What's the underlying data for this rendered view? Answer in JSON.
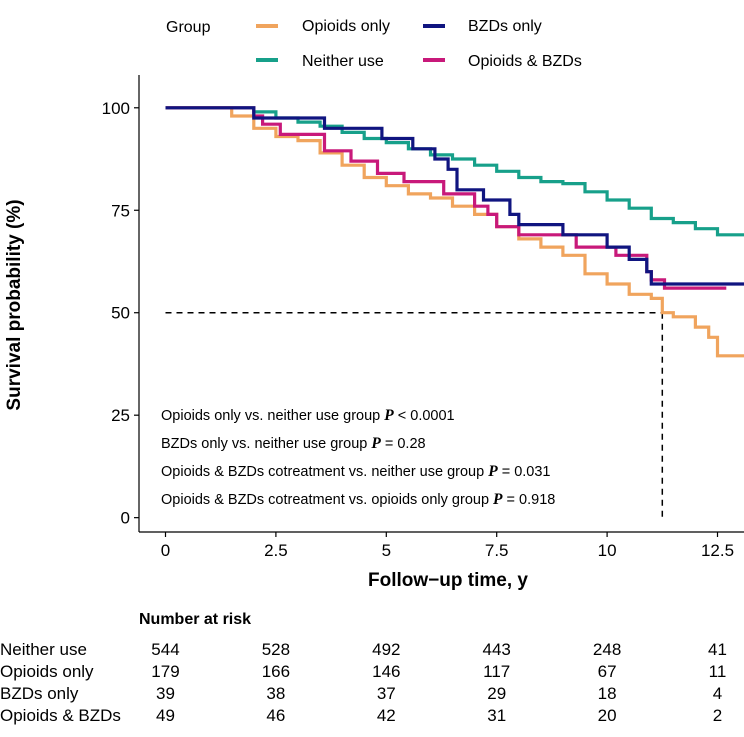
{
  "legend": {
    "title": "Group",
    "entries": [
      {
        "key": "opioids",
        "label": "Opioids only",
        "color": "#F0A45D"
      },
      {
        "key": "bzds",
        "label": "BZDs only",
        "color": "#101580"
      },
      {
        "key": "neither",
        "label": "Neither use",
        "color": "#17A08A"
      },
      {
        "key": "both",
        "label": "Opioids & BZDs",
        "color": "#C8197A"
      }
    ]
  },
  "annotations": [
    {
      "pre": "Opioids only vs. neither use group ",
      "p": "P",
      "post": " < 0.0001"
    },
    {
      "pre": "BZDs only vs. neither use group ",
      "p": "P",
      "post": " = 0.28"
    },
    {
      "pre": "Opioids & BZDs cotreatment vs. neither use group ",
      "p": "P",
      "post": " = 0.031"
    },
    {
      "pre": "Opioids & BZDs cotreatment vs. opioids only group ",
      "p": "P",
      "post": " = 0.918"
    }
  ],
  "risk_table": {
    "title": "Number at risk",
    "rows": [
      {
        "label": "Neither use",
        "values": [
          "544",
          "528",
          "492",
          "443",
          "248",
          "41"
        ]
      },
      {
        "label": "Opioids only",
        "values": [
          "179",
          "166",
          "146",
          "117",
          "67",
          "11"
        ]
      },
      {
        "label": "BZDs only",
        "values": [
          "39",
          "38",
          "37",
          "29",
          "18",
          "4"
        ]
      },
      {
        "label": "Opioids & BZDs",
        "values": [
          "49",
          "46",
          "42",
          "31",
          "20",
          "2"
        ]
      }
    ]
  },
  "chart_data": {
    "type": "line",
    "title": "",
    "xlabel": "Follow−up time, y",
    "ylabel": "Survival probability (%)",
    "xlim": [
      -0.6,
      13.1
    ],
    "ylim": [
      -3.5,
      108
    ],
    "xticks": [
      0,
      2.5,
      5,
      7.5,
      10,
      12.5
    ],
    "xtick_labels": [
      "0",
      "2.5",
      "5",
      "7.5",
      "10",
      "12.5"
    ],
    "yticks": [
      0,
      25,
      50,
      75,
      100
    ],
    "ytick_labels": [
      "0",
      "25",
      "50",
      "75",
      "100"
    ],
    "median_line": {
      "x": 11.25,
      "y": 50
    },
    "series": [
      {
        "key": "neither",
        "name": "Neither use",
        "color": "#17A08A",
        "points": [
          [
            0,
            100
          ],
          [
            1.8,
            100
          ],
          [
            2,
            99
          ],
          [
            2.5,
            97.5
          ],
          [
            3,
            96.5
          ],
          [
            3.5,
            95.5
          ],
          [
            4,
            94
          ],
          [
            4.5,
            92.5
          ],
          [
            5,
            91.5
          ],
          [
            5.5,
            90
          ],
          [
            6,
            88.5
          ],
          [
            6.5,
            87.5
          ],
          [
            7,
            86
          ],
          [
            7.5,
            84.5
          ],
          [
            8,
            83
          ],
          [
            8.5,
            82
          ],
          [
            9,
            81.5
          ],
          [
            9.5,
            79.5
          ],
          [
            10,
            77.5
          ],
          [
            10.5,
            75.5
          ],
          [
            11,
            73
          ],
          [
            11.5,
            72
          ],
          [
            12,
            70.5
          ],
          [
            12.5,
            69
          ],
          [
            13.1,
            69
          ]
        ]
      },
      {
        "key": "opioids",
        "name": "Opioids only",
        "color": "#F0A45D",
        "points": [
          [
            0,
            100
          ],
          [
            1,
            100
          ],
          [
            1.5,
            98
          ],
          [
            2,
            95
          ],
          [
            2.5,
            93
          ],
          [
            3,
            92
          ],
          [
            3.5,
            89
          ],
          [
            4,
            86
          ],
          [
            4.5,
            83
          ],
          [
            5,
            81
          ],
          [
            5.5,
            79
          ],
          [
            6,
            78
          ],
          [
            6.5,
            76
          ],
          [
            7,
            74
          ],
          [
            7.5,
            71
          ],
          [
            8,
            68
          ],
          [
            8.5,
            66
          ],
          [
            9,
            64
          ],
          [
            9.5,
            59.5
          ],
          [
            10,
            57
          ],
          [
            10.5,
            54.5
          ],
          [
            11,
            53.5
          ],
          [
            11.25,
            50
          ],
          [
            11.5,
            49
          ],
          [
            12,
            46.5
          ],
          [
            12.3,
            44
          ],
          [
            12.5,
            39.5
          ],
          [
            13.1,
            39.5
          ]
        ]
      },
      {
        "key": "bzds",
        "name": "BZDs only",
        "color": "#101580",
        "points": [
          [
            0,
            100
          ],
          [
            1.8,
            100
          ],
          [
            2,
            97.5
          ],
          [
            3.3,
            97.5
          ],
          [
            3.6,
            95
          ],
          [
            4.5,
            95
          ],
          [
            4.9,
            92.5
          ],
          [
            5.5,
            92.5
          ],
          [
            5.6,
            90
          ],
          [
            6,
            90
          ],
          [
            6.1,
            87.5
          ],
          [
            6.4,
            85
          ],
          [
            6.6,
            80
          ],
          [
            7,
            80
          ],
          [
            7.2,
            77.5
          ],
          [
            7.6,
            77.5
          ],
          [
            7.8,
            74
          ],
          [
            8,
            71.5
          ],
          [
            8.8,
            71.5
          ],
          [
            9,
            69
          ],
          [
            9.9,
            69
          ],
          [
            10,
            66
          ],
          [
            10.4,
            66
          ],
          [
            10.5,
            63
          ],
          [
            10.8,
            63
          ],
          [
            10.9,
            60
          ],
          [
            11,
            57
          ],
          [
            13.1,
            57
          ]
        ]
      },
      {
        "key": "both",
        "name": "Opioids & BZDs",
        "color": "#C8197A",
        "points": [
          [
            0,
            100
          ],
          [
            1.8,
            100
          ],
          [
            2,
            98
          ],
          [
            2.2,
            96
          ],
          [
            2.6,
            93.5
          ],
          [
            3.4,
            93.5
          ],
          [
            3.6,
            89.5
          ],
          [
            4,
            89.5
          ],
          [
            4.2,
            87
          ],
          [
            4.6,
            87
          ],
          [
            4.8,
            84
          ],
          [
            5.2,
            84
          ],
          [
            5.4,
            82
          ],
          [
            6,
            82
          ],
          [
            6.3,
            79
          ],
          [
            7,
            76
          ],
          [
            7.3,
            74
          ],
          [
            7.5,
            71
          ],
          [
            8,
            69
          ],
          [
            9.1,
            69
          ],
          [
            9.3,
            66
          ],
          [
            10,
            66
          ],
          [
            10.2,
            64
          ],
          [
            10.8,
            64
          ],
          [
            10.9,
            60
          ],
          [
            11,
            58
          ],
          [
            11.3,
            56
          ],
          [
            12.7,
            56
          ]
        ]
      }
    ]
  }
}
